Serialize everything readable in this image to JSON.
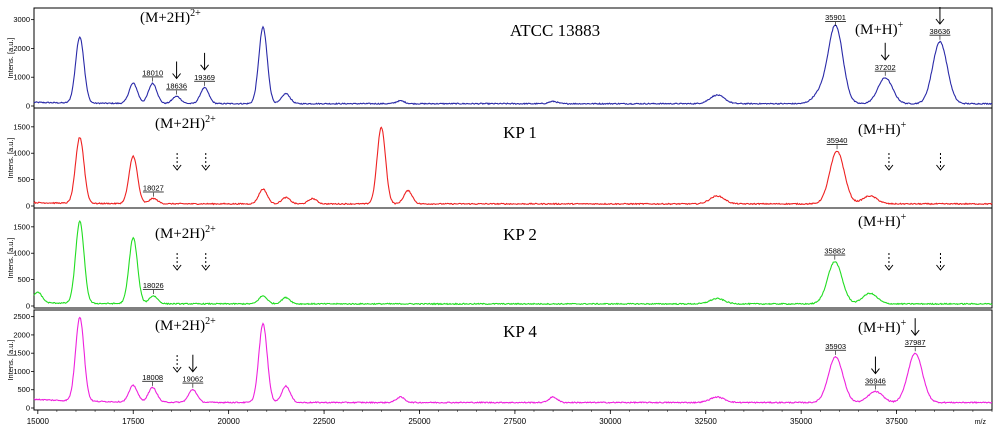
{
  "chart_data": {
    "type": "line",
    "x_axis": {
      "label": "m/z",
      "range": [
        14900,
        40000
      ],
      "ticks": [
        15000,
        17500,
        20000,
        22500,
        25000,
        27500,
        30000,
        32500,
        35000,
        37500
      ]
    },
    "y_axis_label": "Intens. [a.u.]",
    "panels": [
      {
        "title": "ATCC 13883",
        "color": "#2a2aa8",
        "ylim": [
          0,
          3300
        ],
        "yticks": [
          0,
          1000,
          2000,
          3000
        ],
        "left_annotation": "(M+2H)",
        "left_sup": "2+",
        "right_annotation": "(M+H)",
        "right_sup": "+",
        "baseline": 80,
        "peaks": [
          {
            "mz": 16100,
            "height": 2300
          },
          {
            "mz": 17500,
            "height": 700
          },
          {
            "mz": 18010,
            "height": 700,
            "label": "18010"
          },
          {
            "mz": 18636,
            "height": 250,
            "label": "18636"
          },
          {
            "mz": 19369,
            "height": 550,
            "label": "19369"
          },
          {
            "mz": 20900,
            "height": 2650
          },
          {
            "mz": 21500,
            "height": 350
          },
          {
            "mz": 24500,
            "height": 100
          },
          {
            "mz": 28500,
            "height": 80
          },
          {
            "mz": 32800,
            "height": 300
          },
          {
            "mz": 35500,
            "height": 350
          },
          {
            "mz": 35901,
            "height": 2700,
            "label": "35901"
          },
          {
            "mz": 37202,
            "height": 900,
            "label": "37202"
          },
          {
            "mz": 38636,
            "height": 2150,
            "label": "38636"
          }
        ],
        "arrows": [
          {
            "mz": 18636,
            "style": "solid"
          },
          {
            "mz": 19369,
            "style": "solid"
          },
          {
            "mz": 37202,
            "style": "solid"
          },
          {
            "mz": 38636,
            "style": "solid"
          }
        ]
      },
      {
        "title": "KP 1",
        "color": "#ee2222",
        "ylim": [
          0,
          1800
        ],
        "yticks": [
          0,
          500,
          1000,
          1500
        ],
        "left_annotation": "(M+2H)",
        "left_sup": "2+",
        "right_annotation": "(M+H)",
        "right_sup": "+",
        "baseline": 40,
        "peaks": [
          {
            "mz": 16100,
            "height": 1250
          },
          {
            "mz": 17500,
            "height": 900
          },
          {
            "mz": 18027,
            "height": 100,
            "label": "18027"
          },
          {
            "mz": 20900,
            "height": 280
          },
          {
            "mz": 21500,
            "height": 120
          },
          {
            "mz": 22200,
            "height": 100
          },
          {
            "mz": 24000,
            "height": 1450
          },
          {
            "mz": 24700,
            "height": 250
          },
          {
            "mz": 32800,
            "height": 150
          },
          {
            "mz": 35940,
            "height": 1000,
            "label": "35940"
          },
          {
            "mz": 36800,
            "height": 150
          }
        ],
        "arrows": [
          {
            "mz": 18650,
            "style": "dashed"
          },
          {
            "mz": 19400,
            "style": "dashed"
          },
          {
            "mz": 37300,
            "style": "dashed"
          },
          {
            "mz": 38650,
            "style": "dashed"
          }
        ]
      },
      {
        "title": "KP 2",
        "color": "#22dd22",
        "ylim": [
          0,
          1800
        ],
        "yticks": [
          0,
          500,
          1000,
          1500
        ],
        "left_annotation": "(M+2H)",
        "left_sup": "2+",
        "right_annotation": "(M+H)",
        "right_sup": "+",
        "baseline": 40,
        "peaks": [
          {
            "mz": 15000,
            "height": 200
          },
          {
            "mz": 16100,
            "height": 1550
          },
          {
            "mz": 17500,
            "height": 1250
          },
          {
            "mz": 18026,
            "height": 150,
            "label": "18026"
          },
          {
            "mz": 20900,
            "height": 150
          },
          {
            "mz": 21500,
            "height": 120
          },
          {
            "mz": 32800,
            "height": 100
          },
          {
            "mz": 35882,
            "height": 800,
            "label": "35882"
          },
          {
            "mz": 36800,
            "height": 200
          }
        ],
        "arrows": [
          {
            "mz": 18650,
            "style": "dashed"
          },
          {
            "mz": 19400,
            "style": "dashed"
          },
          {
            "mz": 37300,
            "style": "dashed"
          },
          {
            "mz": 38650,
            "style": "dashed"
          }
        ]
      },
      {
        "title": "KP 4",
        "color": "#ee22dd",
        "ylim": [
          0,
          2600
        ],
        "yticks": [
          0,
          500,
          1000,
          1500,
          2000,
          2500
        ],
        "left_annotation": "(M+2H)",
        "left_sup": "2+",
        "right_annotation": "(M+H)",
        "right_sup": "+",
        "baseline": 150,
        "peaks": [
          {
            "mz": 16100,
            "height": 2300
          },
          {
            "mz": 17500,
            "height": 450
          },
          {
            "mz": 18008,
            "height": 400,
            "label": "18008"
          },
          {
            "mz": 19062,
            "height": 350,
            "label": "19062"
          },
          {
            "mz": 20900,
            "height": 2150
          },
          {
            "mz": 21500,
            "height": 450
          },
          {
            "mz": 24500,
            "height": 150
          },
          {
            "mz": 28500,
            "height": 150
          },
          {
            "mz": 32800,
            "height": 150
          },
          {
            "mz": 35903,
            "height": 1250,
            "label": "35903"
          },
          {
            "mz": 36946,
            "height": 300,
            "label": "36946"
          },
          {
            "mz": 37987,
            "height": 1350,
            "label": "37987"
          }
        ],
        "arrows": [
          {
            "mz": 18650,
            "style": "dashed"
          },
          {
            "mz": 19062,
            "style": "solid"
          },
          {
            "mz": 36946,
            "style": "solid"
          },
          {
            "mz": 37987,
            "style": "solid"
          }
        ]
      }
    ]
  }
}
